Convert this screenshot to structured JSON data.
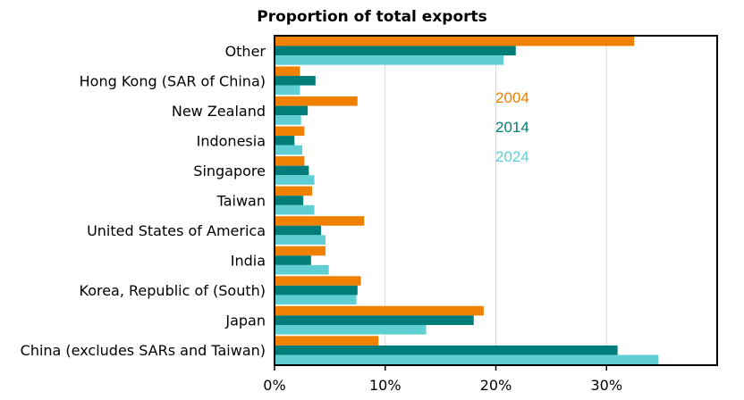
{
  "chart_data": {
    "type": "bar",
    "orientation": "horizontal",
    "title": "Proportion of total exports",
    "xlabel": "",
    "ylabel": "",
    "categories": [
      "Other",
      "Hong Kong (SAR of China)",
      "New Zealand",
      "Indonesia",
      "Singapore",
      "Taiwan",
      "United States of America",
      "India",
      "Korea, Republic of (South)",
      "Japan",
      "China (excludes SARs and Taiwan)"
    ],
    "series": [
      {
        "name": "2004",
        "color": "#f08000",
        "values": [
          32.5,
          2.3,
          7.5,
          2.7,
          2.7,
          3.4,
          8.1,
          4.6,
          7.8,
          18.9,
          9.4
        ]
      },
      {
        "name": "2014",
        "color": "#007d78",
        "values": [
          21.8,
          3.7,
          3.0,
          1.8,
          3.1,
          2.6,
          4.2,
          3.3,
          7.5,
          18.0,
          31.0
        ]
      },
      {
        "name": "2024",
        "color": "#5fcfd4",
        "values": [
          20.7,
          2.3,
          2.4,
          2.5,
          3.6,
          3.6,
          4.6,
          4.9,
          7.4,
          13.7,
          34.7
        ]
      }
    ],
    "xlim": [
      0,
      40
    ],
    "xticks": [
      "0%",
      "10%",
      "20%",
      "30%"
    ],
    "xtick_values": [
      0,
      10,
      20,
      30
    ],
    "grid": "vertical",
    "legend_position": "inside-upper-center"
  }
}
